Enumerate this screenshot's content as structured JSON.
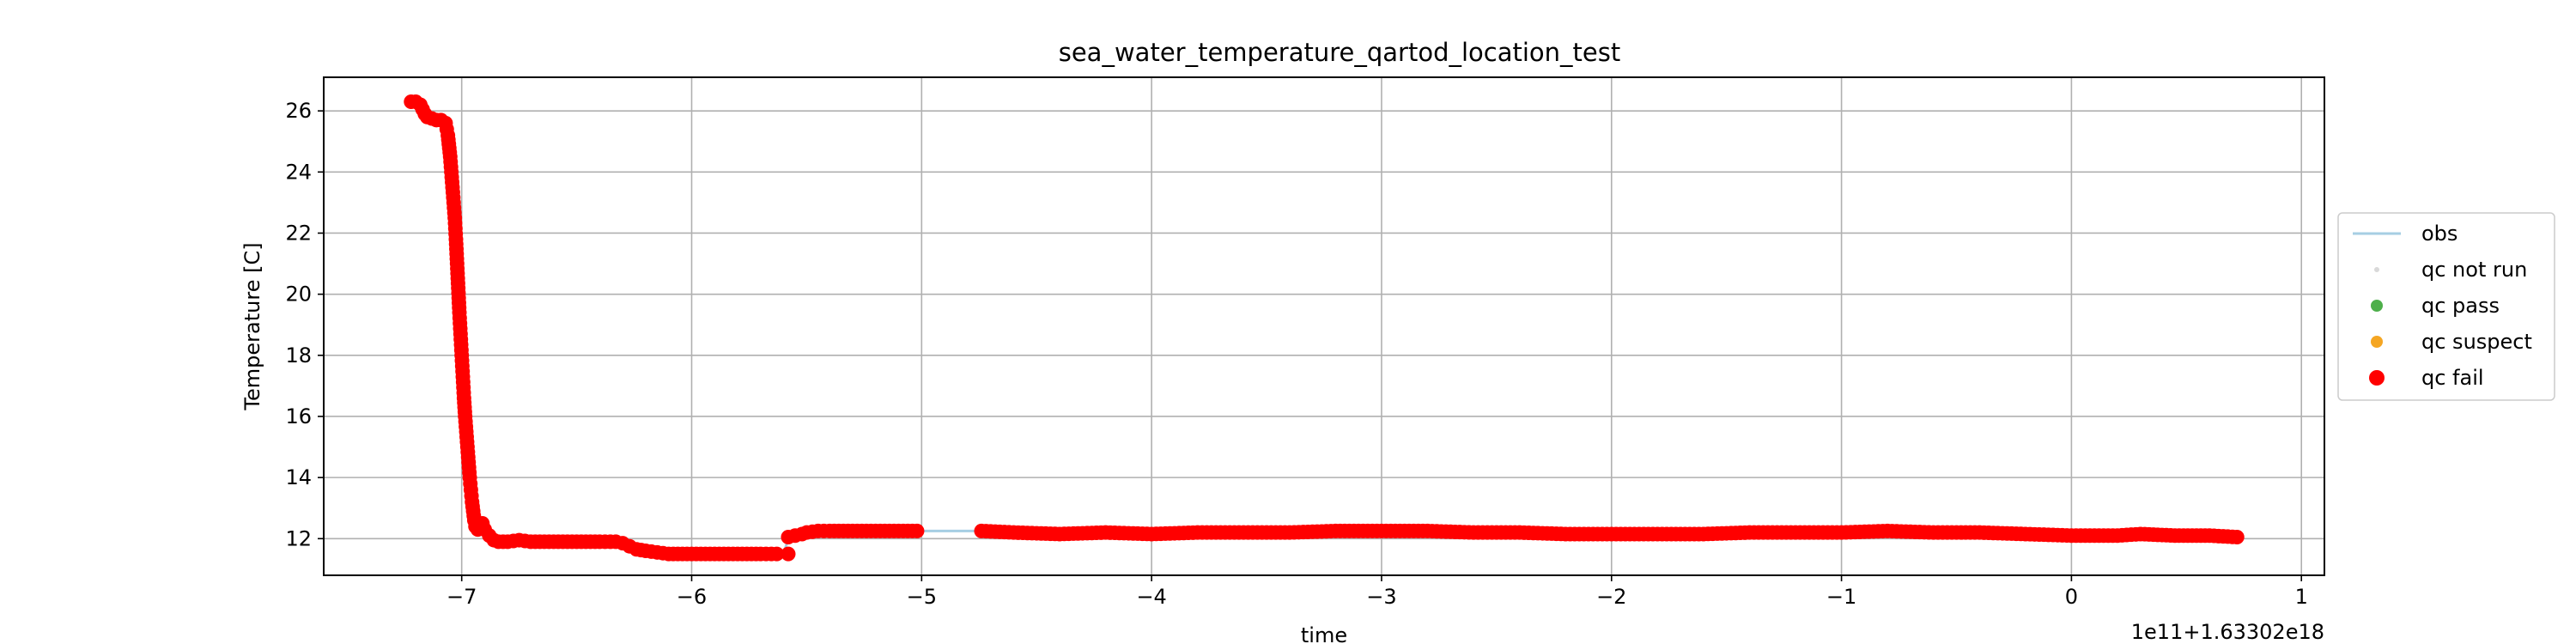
{
  "chart_data": {
    "type": "scatter",
    "title": "sea_water_temperature_qartod_location_test",
    "xlabel": "time",
    "ylabel": "Temperature [C]",
    "x_offset_label": "1e11+1.63302e18",
    "xlim": [
      -7.6,
      1.1
    ],
    "ylim": [
      10.8,
      27.1
    ],
    "x_ticks": [
      -7,
      -6,
      -5,
      -4,
      -3,
      -2,
      -1,
      0,
      1
    ],
    "x_tick_labels": [
      "−7",
      "−6",
      "−5",
      "−4",
      "−3",
      "−2",
      "−1",
      "0",
      "1"
    ],
    "y_ticks": [
      12,
      14,
      16,
      18,
      20,
      22,
      24,
      26
    ],
    "y_tick_labels": [
      "12",
      "14",
      "16",
      "18",
      "20",
      "22",
      "24",
      "26"
    ],
    "grid": true,
    "legend_position": "right",
    "legend": [
      {
        "label": "obs",
        "marker": "line",
        "color": "#a6cee3"
      },
      {
        "label": "qc not run",
        "marker": "dot-small",
        "color": "#d9d9d9"
      },
      {
        "label": "qc pass",
        "marker": "dot",
        "color": "#4daf4a"
      },
      {
        "label": "qc suspect",
        "marker": "dot",
        "color": "#f5a623"
      },
      {
        "label": "qc fail",
        "marker": "dot-large",
        "color": "#ff0000"
      }
    ],
    "series": [
      {
        "name": "obs",
        "kind": "line",
        "color": "#a6cee3",
        "x": [
          -7.22,
          -7.18,
          -7.15,
          -7.1,
          -7.07,
          -7.05,
          -7.03,
          -7.01,
          -7.0,
          -6.99,
          -6.98,
          -6.97,
          -6.96,
          -6.95,
          -6.94,
          -6.92,
          -6.9,
          -6.85,
          -6.8,
          -6.7,
          -6.6,
          -6.4,
          -6.3,
          -6.2,
          -6.0,
          -5.8,
          -5.62,
          -5.6,
          -5.58,
          -5.56,
          -5.5,
          -5.4,
          -5.2,
          -5.0,
          -4.75,
          -4.6,
          -4.4,
          -4.2,
          -4.0,
          -3.8,
          -3.6,
          -3.4,
          -3.2,
          -3.0,
          -2.8,
          -2.6,
          -2.4,
          -2.2,
          -2.0,
          -1.8,
          -1.6,
          -1.4,
          -1.2,
          -1.0,
          -0.8,
          -0.6,
          -0.4,
          -0.2,
          0.0,
          0.2,
          0.35,
          0.5,
          0.72
        ],
        "y": [
          26.3,
          26.2,
          25.8,
          25.7,
          25.5,
          24.5,
          22.5,
          20.0,
          18.0,
          16.5,
          15.0,
          14.0,
          13.2,
          12.6,
          12.3,
          12.3,
          12.0,
          11.9,
          11.9,
          11.9,
          11.9,
          11.9,
          11.8,
          11.6,
          11.5,
          11.5,
          11.5,
          11.5,
          12.0,
          12.1,
          12.2,
          12.25,
          12.25,
          12.25,
          12.25,
          12.2,
          12.15,
          12.2,
          12.15,
          12.2,
          12.2,
          12.2,
          12.25,
          12.25,
          12.25,
          12.2,
          12.2,
          12.15,
          12.15,
          12.15,
          12.15,
          12.2,
          12.2,
          12.2,
          12.25,
          12.2,
          12.2,
          12.15,
          12.1,
          12.1,
          12.15,
          12.1,
          12.05
        ]
      },
      {
        "name": "qc fail",
        "kind": "scatter",
        "color": "#ff0000",
        "segments": [
          {
            "x": [
              -7.22,
              -7.2,
              -7.18,
              -7.16,
              -7.15,
              -7.13,
              -7.11,
              -7.09,
              -7.07,
              -7.06,
              -7.05,
              -7.045,
              -7.04,
              -7.035,
              -7.03,
              -7.025,
              -7.02,
              -7.015,
              -7.01,
              -7.005,
              -7.0,
              -6.995,
              -6.99,
              -6.985,
              -6.98,
              -6.975,
              -6.97,
              -6.965,
              -6.96,
              -6.955,
              -6.95,
              -6.945,
              -6.94,
              -6.93,
              -6.92,
              -6.91,
              -6.9,
              -6.88,
              -6.86,
              -6.84,
              -6.82,
              -6.8,
              -6.75,
              -6.7,
              -6.6,
              -6.5,
              -6.4,
              -6.33,
              -6.3,
              -6.27,
              -6.24,
              -6.2,
              -6.15,
              -6.1,
              -6.0,
              -5.9,
              -5.8,
              -5.7,
              -5.63
            ],
            "y": [
              26.3,
              26.3,
              26.2,
              25.9,
              25.8,
              25.75,
              25.7,
              25.7,
              25.6,
              25.2,
              24.5,
              24.0,
              23.5,
              23.0,
              22.5,
              21.8,
              21.0,
              20.2,
              19.4,
              18.7,
              18.0,
              17.3,
              16.6,
              16.0,
              15.5,
              15.0,
              14.5,
              14.0,
              13.6,
              13.2,
              12.9,
              12.6,
              12.4,
              12.3,
              12.4,
              12.5,
              12.3,
              12.1,
              11.95,
              11.9,
              11.9,
              11.9,
              11.95,
              11.9,
              11.9,
              11.9,
              11.9,
              11.9,
              11.85,
              11.75,
              11.65,
              11.6,
              11.55,
              11.5,
              11.5,
              11.5,
              11.5,
              11.5,
              11.5
            ]
          },
          {
            "x": [
              -5.58
            ],
            "y": [
              11.5
            ]
          },
          {
            "x": [
              -5.58,
              -5.55,
              -5.52,
              -5.5,
              -5.45,
              -5.4,
              -5.3,
              -5.2,
              -5.1,
              -5.02
            ],
            "y": [
              12.05,
              12.1,
              12.15,
              12.2,
              12.25,
              12.25,
              12.25,
              12.25,
              12.25,
              12.25
            ]
          },
          {
            "x": [
              -4.74,
              -4.6,
              -4.4,
              -4.2,
              -4.0,
              -3.8,
              -3.6,
              -3.4,
              -3.2,
              -3.0,
              -2.8,
              -2.6,
              -2.4,
              -2.2,
              -2.0,
              -1.8,
              -1.6,
              -1.4,
              -1.2,
              -1.0,
              -0.8,
              -0.6,
              -0.4,
              -0.2,
              0.0,
              0.2,
              0.3,
              0.45,
              0.6,
              0.72
            ],
            "y": [
              12.25,
              12.2,
              12.15,
              12.2,
              12.15,
              12.2,
              12.2,
              12.2,
              12.25,
              12.25,
              12.25,
              12.2,
              12.2,
              12.15,
              12.15,
              12.15,
              12.15,
              12.2,
              12.2,
              12.2,
              12.25,
              12.2,
              12.2,
              12.15,
              12.1,
              12.1,
              12.15,
              12.1,
              12.1,
              12.05
            ]
          }
        ]
      }
    ]
  }
}
